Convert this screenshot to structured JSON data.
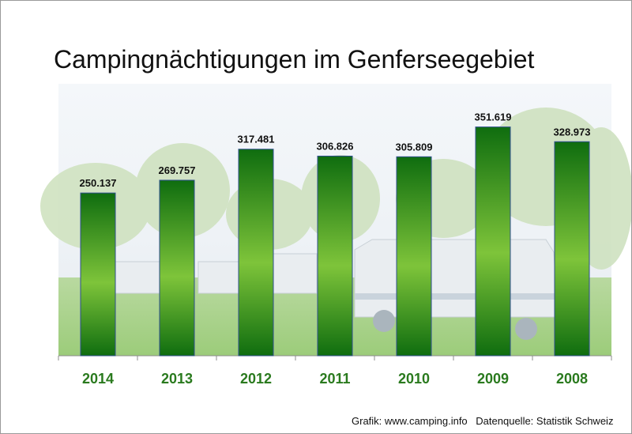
{
  "chart_data": {
    "type": "bar",
    "title": "Campingnächtigungen im Genferseegebiet",
    "categories": [
      "2014",
      "2013",
      "2012",
      "2011",
      "2010",
      "2009",
      "2008"
    ],
    "values": [
      250137,
      269757,
      317481,
      306826,
      305809,
      351619,
      328973
    ],
    "value_labels": [
      "250.137",
      "269.757",
      "317.481",
      "306.826",
      "305.809",
      "351.619",
      "328.973"
    ],
    "xlabel": "",
    "ylabel": "",
    "ylim": [
      0,
      400000
    ],
    "grid": false,
    "colors": {
      "bar_dark": "#0f6d0f",
      "bar_light": "#7ec43a",
      "tick_label": "#2a7a1e",
      "value_label": "#111111"
    }
  },
  "footer": {
    "credit": "Grafik: www.camping.info",
    "source": "Datenquelle: Statistik Schweiz"
  }
}
